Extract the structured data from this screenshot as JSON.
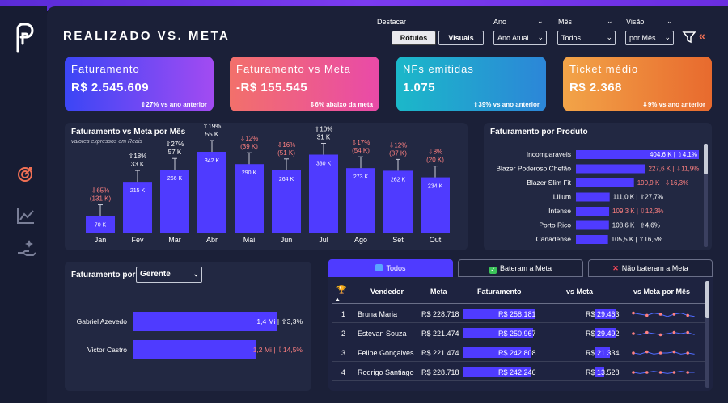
{
  "title": "REALIZADO VS. META",
  "filters": {
    "destacar_label": "Destacar",
    "rotulos_label": "Rótulos",
    "visuais_label": "Visuais",
    "ano_label": "Ano",
    "ano_value": "Ano Atual",
    "mes_label": "Mês",
    "mes_value": "Todos",
    "visao_label": "Visão",
    "visao_value": "por Mês"
  },
  "kpis": [
    {
      "title": "Faturamento",
      "value": "R$ 2.545.609",
      "delta": "⇧27% vs ano anterior",
      "colors": [
        "#3b46f5",
        "#a24bf2"
      ]
    },
    {
      "title": "Faturamento vs Meta",
      "value": "-R$ 155.545",
      "delta": "⇩6% abaixo da meta",
      "colors": [
        "#f2706b",
        "#e94aa8"
      ]
    },
    {
      "title": "NFs emitidas",
      "value": "1.075",
      "delta": "⇧39% vs ano anterior",
      "colors": [
        "#1bb8c9",
        "#2c86d8"
      ]
    },
    {
      "title": "Ticket médio",
      "value": "R$ 2.368",
      "delta": "⇩9% vs ano anterior",
      "colors": [
        "#f2a448",
        "#e86a2e"
      ]
    }
  ],
  "monthly": {
    "title": "Faturamento vs Meta por Mês",
    "subtitle": "valores expressos em Reais",
    "bar_color": "#4f3bff",
    "months": [
      {
        "m": "Jan",
        "value": 70,
        "value_label": "70 K",
        "pct": "⇩65%",
        "diff": "(131 K)",
        "neg": true
      },
      {
        "m": "Fev",
        "value": 215,
        "value_label": "215 K",
        "pct": "⇧18%",
        "diff": "33 K",
        "neg": false
      },
      {
        "m": "Mar",
        "value": 266,
        "value_label": "266 K",
        "pct": "⇧27%",
        "diff": "57 K",
        "neg": false
      },
      {
        "m": "Abr",
        "value": 342,
        "value_label": "342 K",
        "pct": "⇧19%",
        "diff": "55 K",
        "neg": false
      },
      {
        "m": "Mai",
        "value": 290,
        "value_label": "290 K",
        "pct": "⇩12%",
        "diff": "(39 K)",
        "neg": true
      },
      {
        "m": "Jun",
        "value": 264,
        "value_label": "264 K",
        "pct": "⇩16%",
        "diff": "(51 K)",
        "neg": true
      },
      {
        "m": "Jul",
        "value": 330,
        "value_label": "330 K",
        "pct": "⇧10%",
        "diff": "31 K",
        "neg": false
      },
      {
        "m": "Ago",
        "value": 273,
        "value_label": "273 K",
        "pct": "⇩17%",
        "diff": "(54 K)",
        "neg": true
      },
      {
        "m": "Set",
        "value": 262,
        "value_label": "262 K",
        "pct": "⇩12%",
        "diff": "(37 K)",
        "neg": true
      },
      {
        "m": "Out",
        "value": 234,
        "value_label": "234 K",
        "pct": "⇩8%",
        "diff": "(20 K)",
        "neg": true
      }
    ]
  },
  "products": {
    "title": "Faturamento por Produto",
    "items": [
      {
        "name": "Incomparaveis",
        "value": 404.6,
        "amount": "404,6 K",
        "delta": "⇧4,1%",
        "neg": false
      },
      {
        "name": "Blazer Poderoso Chefão",
        "value": 227.6,
        "amount": "227,6 K",
        "delta": "⇩11,9%",
        "neg": true
      },
      {
        "name": "Blazer Slim Fit",
        "value": 190.9,
        "amount": "190,9 K",
        "delta": "⇩16,3%",
        "neg": true
      },
      {
        "name": "Lilium",
        "value": 111.0,
        "amount": "111,0 K",
        "delta": "⇧27,7%",
        "neg": false
      },
      {
        "name": "Intense",
        "value": 109.3,
        "amount": "109,3 K",
        "delta": "⇩12,3%",
        "neg": true
      },
      {
        "name": "Porto Rico",
        "value": 108.6,
        "amount": "108,6 K",
        "delta": "⇧4,6%",
        "neg": false
      },
      {
        "name": "Canadense",
        "value": 105.5,
        "amount": "105,5 K",
        "delta": "⇧16,5%",
        "neg": false
      }
    ]
  },
  "gerente": {
    "label": "Faturamento por",
    "dropdown": "Gerente",
    "items": [
      {
        "name": "Gabriel Azevedo",
        "value": 1.4,
        "amount": "1,4 Mi",
        "delta": "⇧3,3%",
        "neg": false
      },
      {
        "name": "Victor Castro",
        "value": 1.2,
        "amount": "1,2 Mi",
        "delta": "⇩14,5%",
        "neg": true
      }
    ]
  },
  "tabs": {
    "todos": "Todos",
    "bateram": "Bateram a Meta",
    "nao_bateram": "Não bateram a Meta"
  },
  "table": {
    "headers": {
      "vendedor": "Vendedor",
      "meta": "Meta",
      "faturamento": "Faturamento",
      "vs_meta": "vs Meta",
      "vs_meta_mes": "vs Meta por Mês"
    },
    "rows": [
      {
        "rank": "1",
        "vendedor": "Bruna Maria",
        "meta": "R$ 228.718",
        "faturamento": "R$ 258.181",
        "fat_value": 258181,
        "vs_meta": "R$ 29.463",
        "vs_value": 29463
      },
      {
        "rank": "2",
        "vendedor": "Estevan Souza",
        "meta": "R$ 221.474",
        "faturamento": "R$ 250.967",
        "fat_value": 250967,
        "vs_meta": "R$ 29.492",
        "vs_value": 29492
      },
      {
        "rank": "3",
        "vendedor": "Felipe Gonçalves",
        "meta": "R$ 221.474",
        "faturamento": "R$ 242.808",
        "fat_value": 242808,
        "vs_meta": "R$ 21.334",
        "vs_value": 21334
      },
      {
        "rank": "4",
        "vendedor": "Rodrigo Santiago",
        "meta": "R$ 228.718",
        "faturamento": "R$ 242.246",
        "fat_value": 242246,
        "vs_meta": "R$ 13.528",
        "vs_value": 13528
      }
    ]
  }
}
